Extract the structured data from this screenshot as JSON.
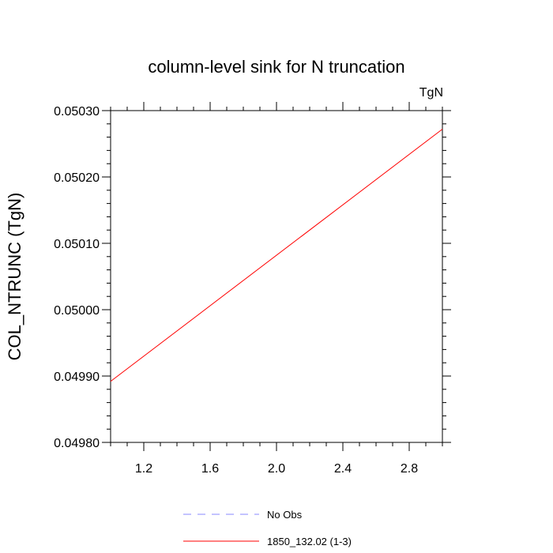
{
  "chart_data": {
    "type": "line",
    "title": "column-level sink for N truncation",
    "units_label": "TgN",
    "ylabel": "COL_NTRUNC  (TgN)",
    "xlabel": "",
    "xlim": [
      1.0,
      3.0
    ],
    "ylim": [
      0.0498,
      0.0503
    ],
    "x_ticks": [
      {
        "value": 1.2,
        "label": "1.2"
      },
      {
        "value": 1.6,
        "label": "1.6"
      },
      {
        "value": 2.0,
        "label": "2.0"
      },
      {
        "value": 2.4,
        "label": "2.4"
      },
      {
        "value": 2.8,
        "label": "2.8"
      }
    ],
    "y_ticks": [
      {
        "value": 0.0498,
        "label": "0.04980"
      },
      {
        "value": 0.0499,
        "label": "0.04990"
      },
      {
        "value": 0.05,
        "label": "0.05000"
      },
      {
        "value": 0.0501,
        "label": "0.05010"
      },
      {
        "value": 0.0502,
        "label": "0.05020"
      },
      {
        "value": 0.0503,
        "label": "0.05030"
      }
    ],
    "grid": false,
    "legend_position": "bottom",
    "series": [
      {
        "name": "No Obs",
        "color": "#8a8aff",
        "dash": "dashed",
        "x": [],
        "y": []
      },
      {
        "name": "1850_132.02 (1-3)",
        "color": "#ff0000",
        "dash": "solid",
        "x": [
          1.0,
          3.0
        ],
        "y": [
          0.049892,
          0.050272
        ]
      }
    ]
  }
}
